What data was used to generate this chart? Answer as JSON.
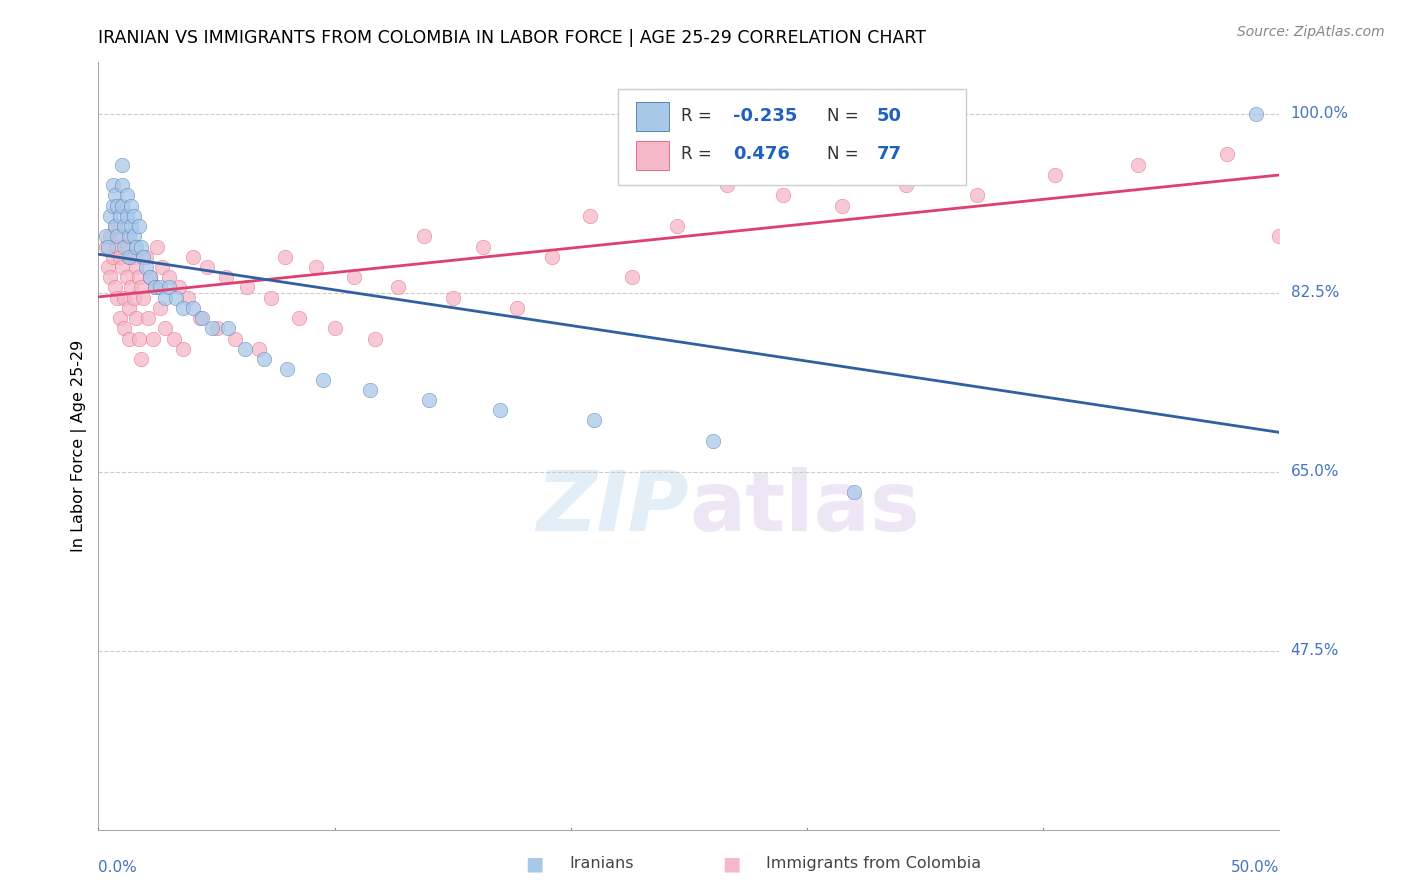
{
  "title": "IRANIAN VS IMMIGRANTS FROM COLOMBIA IN LABOR FORCE | AGE 25-29 CORRELATION CHART",
  "source": "Source: ZipAtlas.com",
  "ylabel": "In Labor Force | Age 25-29",
  "xmin": 0.0,
  "xmax": 0.5,
  "ymin": 0.3,
  "ymax": 1.05,
  "iranians_R": -0.235,
  "iranians_N": 50,
  "colombia_R": 0.476,
  "colombia_N": 77,
  "blue_color": "#a8c8e8",
  "pink_color": "#f4b8c8",
  "blue_line_color": "#3060a0",
  "pink_line_color": "#e04070",
  "watermark_zip": "ZIP",
  "watermark_atlas": "atlas",
  "ytick_vals": [
    1.0,
    0.825,
    0.65,
    0.475
  ],
  "ytick_labels": [
    "100.0%",
    "82.5%",
    "65.0%",
    "47.5%"
  ],
  "xtick_vals": [
    0.0,
    0.1,
    0.2,
    0.3,
    0.4,
    0.5
  ],
  "xtick_labels": [
    "0.0%",
    "",
    "",
    "",
    "",
    "50.0%"
  ],
  "iranians_x": [
    0.003,
    0.004,
    0.005,
    0.006,
    0.006,
    0.007,
    0.007,
    0.008,
    0.008,
    0.009,
    0.01,
    0.01,
    0.01,
    0.011,
    0.011,
    0.012,
    0.012,
    0.013,
    0.013,
    0.014,
    0.014,
    0.015,
    0.015,
    0.016,
    0.017,
    0.018,
    0.019,
    0.02,
    0.022,
    0.024,
    0.026,
    0.028,
    0.03,
    0.033,
    0.036,
    0.04,
    0.044,
    0.048,
    0.055,
    0.062,
    0.07,
    0.08,
    0.095,
    0.115,
    0.14,
    0.17,
    0.21,
    0.26,
    0.32,
    0.49
  ],
  "iranians_y": [
    0.88,
    0.87,
    0.9,
    0.93,
    0.91,
    0.92,
    0.89,
    0.91,
    0.88,
    0.9,
    0.95,
    0.93,
    0.91,
    0.89,
    0.87,
    0.92,
    0.9,
    0.88,
    0.86,
    0.91,
    0.89,
    0.9,
    0.88,
    0.87,
    0.89,
    0.87,
    0.86,
    0.85,
    0.84,
    0.83,
    0.83,
    0.82,
    0.83,
    0.82,
    0.81,
    0.81,
    0.8,
    0.79,
    0.79,
    0.77,
    0.76,
    0.75,
    0.74,
    0.73,
    0.72,
    0.71,
    0.7,
    0.68,
    0.63,
    1.0
  ],
  "colombia_x": [
    0.003,
    0.004,
    0.005,
    0.005,
    0.006,
    0.007,
    0.007,
    0.008,
    0.008,
    0.009,
    0.009,
    0.01,
    0.01,
    0.011,
    0.011,
    0.012,
    0.012,
    0.013,
    0.013,
    0.014,
    0.014,
    0.015,
    0.015,
    0.016,
    0.016,
    0.017,
    0.017,
    0.018,
    0.018,
    0.019,
    0.02,
    0.021,
    0.022,
    0.023,
    0.024,
    0.025,
    0.026,
    0.027,
    0.028,
    0.03,
    0.032,
    0.034,
    0.036,
    0.038,
    0.04,
    0.043,
    0.046,
    0.05,
    0.054,
    0.058,
    0.063,
    0.068,
    0.073,
    0.079,
    0.085,
    0.092,
    0.1,
    0.108,
    0.117,
    0.127,
    0.138,
    0.15,
    0.163,
    0.177,
    0.192,
    0.208,
    0.226,
    0.245,
    0.266,
    0.29,
    0.315,
    0.342,
    0.372,
    0.405,
    0.44,
    0.478,
    0.5
  ],
  "colombia_y": [
    0.87,
    0.85,
    0.88,
    0.84,
    0.86,
    0.89,
    0.83,
    0.87,
    0.82,
    0.86,
    0.8,
    0.88,
    0.85,
    0.82,
    0.79,
    0.87,
    0.84,
    0.81,
    0.78,
    0.86,
    0.83,
    0.86,
    0.82,
    0.85,
    0.8,
    0.84,
    0.78,
    0.83,
    0.76,
    0.82,
    0.86,
    0.8,
    0.84,
    0.78,
    0.83,
    0.87,
    0.81,
    0.85,
    0.79,
    0.84,
    0.78,
    0.83,
    0.77,
    0.82,
    0.86,
    0.8,
    0.85,
    0.79,
    0.84,
    0.78,
    0.83,
    0.77,
    0.82,
    0.86,
    0.8,
    0.85,
    0.79,
    0.84,
    0.78,
    0.83,
    0.88,
    0.82,
    0.87,
    0.81,
    0.86,
    0.9,
    0.84,
    0.89,
    0.93,
    0.92,
    0.91,
    0.93,
    0.92,
    0.94,
    0.95,
    0.96,
    0.88
  ]
}
